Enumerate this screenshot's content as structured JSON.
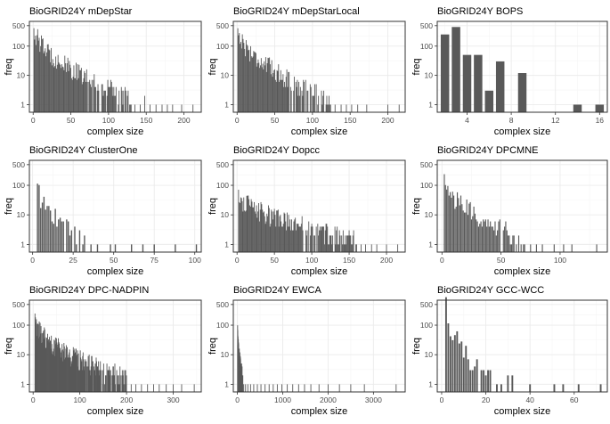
{
  "figure": {
    "style": {
      "bar_color": "#595959",
      "panel_border": "#333333",
      "grid_major": "#ebebeb",
      "grid_minor": "#f5f5f5",
      "tick_text": "#4d4d4d"
    },
    "panels": [
      {
        "title": "BioGRID24Y mDepStar"
      },
      {
        "title": "BioGRID24Y mDepStarLocal"
      },
      {
        "title": "BioGRID24Y BOPS"
      },
      {
        "title": "BioGRID24Y ClusterOne"
      },
      {
        "title": "BioGRID24Y Dopcc"
      },
      {
        "title": "BioGRID24Y DPCMNE"
      },
      {
        "title": "BioGRID24Y DPC-NADPIN"
      },
      {
        "title": "BioGRID24Y EWCA"
      },
      {
        "title": "BioGRID24Y GCC-WCC"
      }
    ]
  },
  "chart_data": [
    {
      "type": "bar",
      "title": "BioGRID24Y mDepStar",
      "xlabel": "complex size",
      "ylabel": "freq",
      "yscale": "log10",
      "xlim": [
        -5,
        223
      ],
      "ylim": [
        0.55,
        700
      ],
      "xticks": [
        0,
        50,
        100,
        150,
        200
      ],
      "yticks": [
        1,
        10,
        100,
        500
      ],
      "bar_width": 1,
      "decay": {
        "start": 1,
        "end": 130,
        "y_start": 450,
        "y_end": 1.5,
        "tail": [
          [
            135,
            1
          ],
          [
            142,
            1
          ],
          [
            148,
            2
          ],
          [
            155,
            1
          ],
          [
            163,
            1
          ],
          [
            171,
            1
          ],
          [
            178,
            1
          ],
          [
            185,
            1
          ],
          [
            197,
            1
          ],
          [
            212,
            1
          ]
        ]
      }
    },
    {
      "type": "bar",
      "title": "BioGRID24Y mDepStarLocal",
      "xlabel": "complex size",
      "ylabel": "freq",
      "yscale": "log10",
      "xlim": [
        -5,
        223
      ],
      "ylim": [
        0.55,
        700
      ],
      "xticks": [
        0,
        50,
        100,
        150,
        200
      ],
      "yticks": [
        1,
        10,
        100,
        500
      ],
      "bar_width": 1,
      "decay": {
        "start": 1,
        "end": 125,
        "y_start": 400,
        "y_end": 1.5,
        "tail": [
          [
            130,
            1
          ],
          [
            138,
            1
          ],
          [
            145,
            1
          ],
          [
            152,
            1
          ],
          [
            160,
            1
          ],
          [
            172,
            1
          ],
          [
            200,
            1
          ],
          [
            215,
            1
          ]
        ]
      }
    },
    {
      "type": "bar",
      "title": "BioGRID24Y BOPS",
      "xlabel": "complex size",
      "ylabel": "freq",
      "yscale": "log10",
      "xlim": [
        1.3,
        16.7
      ],
      "ylim": [
        0.55,
        700
      ],
      "xticks": [
        4,
        8,
        12,
        16
      ],
      "yticks": [
        1,
        10,
        100,
        500
      ],
      "bar_width": 0.9,
      "x": [
        2,
        3,
        4,
        5,
        6,
        7,
        9,
        14,
        16
      ],
      "values": [
        250,
        450,
        50,
        50,
        3,
        30,
        12,
        1,
        1
      ]
    },
    {
      "type": "bar",
      "title": "BioGRID24Y ClusterOne",
      "xlabel": "complex size",
      "ylabel": "freq",
      "yscale": "log10",
      "xlim": [
        -2,
        104
      ],
      "ylim": [
        0.55,
        700
      ],
      "xticks": [
        0,
        25,
        50,
        75,
        100
      ],
      "yticks": [
        1,
        10,
        100,
        500
      ],
      "bar_width": 0.9,
      "decay": {
        "start": 3,
        "end": 32,
        "y_start": 90,
        "y_end": 1.5,
        "tail": [
          [
            36,
            1
          ],
          [
            40,
            1
          ],
          [
            48,
            1
          ],
          [
            51,
            1
          ],
          [
            61,
            1
          ],
          [
            68,
            1
          ],
          [
            75,
            1
          ],
          [
            88,
            1
          ],
          [
            101,
            1
          ]
        ]
      }
    },
    {
      "type": "bar",
      "title": "BioGRID24Y Dopcc",
      "xlabel": "complex size",
      "ylabel": "freq",
      "yscale": "log10",
      "xlim": [
        -5,
        225
      ],
      "ylim": [
        0.55,
        700
      ],
      "xticks": [
        0,
        50,
        100,
        150,
        200
      ],
      "yticks": [
        1,
        10,
        100,
        500
      ],
      "bar_width": 1,
      "decay": {
        "start": 2,
        "end": 160,
        "y_start": 50,
        "y_end": 1.5,
        "tail": [
          [
            166,
            1
          ],
          [
            172,
            1
          ],
          [
            180,
            1
          ],
          [
            187,
            1
          ],
          [
            200,
            1
          ],
          [
            215,
            1
          ]
        ]
      }
    },
    {
      "type": "bar",
      "title": "BioGRID24Y DPCMNE",
      "xlabel": "complex size",
      "ylabel": "freq",
      "yscale": "log10",
      "xlim": [
        -4,
        140
      ],
      "ylim": [
        0.55,
        700
      ],
      "xticks": [
        0,
        50,
        100
      ],
      "yticks": [
        1,
        10,
        100,
        500
      ],
      "bar_width": 1,
      "decay": {
        "start": 2,
        "end": 70,
        "y_start": 150,
        "y_end": 1.5,
        "tail": [
          [
            75,
            1
          ],
          [
            80,
            1
          ],
          [
            85,
            1
          ],
          [
            95,
            1
          ],
          [
            103,
            1
          ],
          [
            110,
            1
          ],
          [
            131,
            1
          ]
        ]
      }
    },
    {
      "type": "bar",
      "title": "BioGRID24Y DPC-NADPIN",
      "xlabel": "complex size",
      "ylabel": "freq",
      "yscale": "log10",
      "xlim": [
        -8,
        360
      ],
      "ylim": [
        0.55,
        700
      ],
      "xticks": [
        0,
        100,
        200,
        300
      ],
      "yticks": [
        1,
        10,
        100,
        500
      ],
      "bar_width": 1,
      "decay": {
        "start": 4,
        "end": 200,
        "y_start": 140,
        "y_end": 1.5,
        "tail": [
          [
            210,
            1
          ],
          [
            220,
            1
          ],
          [
            232,
            1
          ],
          [
            245,
            1
          ],
          [
            258,
            1
          ],
          [
            270,
            1
          ],
          [
            285,
            1
          ],
          [
            300,
            1
          ],
          [
            318,
            1
          ],
          [
            345,
            1
          ]
        ]
      }
    },
    {
      "type": "bar",
      "title": "BioGRID24Y EWCA",
      "xlabel": "complex size",
      "ylabel": "freq",
      "yscale": "log10",
      "xlim": [
        -90,
        3700
      ],
      "ylim": [
        0.55,
        700
      ],
      "xticks": [
        0,
        1000,
        2000,
        3000
      ],
      "yticks": [
        1,
        10,
        100,
        500
      ],
      "bar_width": 6,
      "decay": {
        "start": 5,
        "end": 120,
        "y_start": 50,
        "y_end": 1.5,
        "tail": [
          [
            140,
            1
          ],
          [
            180,
            1
          ],
          [
            230,
            1
          ],
          [
            290,
            1
          ],
          [
            360,
            1
          ],
          [
            440,
            1
          ],
          [
            520,
            1
          ],
          [
            610,
            1
          ],
          [
            700,
            1
          ],
          [
            790,
            1
          ],
          [
            880,
            1
          ],
          [
            980,
            1
          ],
          [
            1100,
            1
          ],
          [
            1220,
            1
          ],
          [
            1350,
            1
          ],
          [
            1480,
            1
          ],
          [
            1620,
            1
          ],
          [
            1800,
            1
          ],
          [
            2000,
            1
          ],
          [
            2250,
            1
          ],
          [
            2500,
            1
          ],
          [
            2800,
            1
          ],
          [
            3500,
            1
          ]
        ]
      }
    },
    {
      "type": "bar",
      "title": "BioGRID24Y GCC-WCC",
      "xlabel": "complex size",
      "ylabel": "freq",
      "yscale": "log10",
      "xlim": [
        -2,
        75
      ],
      "ylim": [
        0.55,
        700
      ],
      "xticks": [
        0,
        20,
        40,
        60
      ],
      "yticks": [
        1,
        10,
        100,
        500
      ],
      "bar_width": 0.9,
      "decay": {
        "start": 2,
        "end": 22,
        "y_start": 400,
        "y_end": 1.5,
        "tail": [
          [
            25,
            1
          ],
          [
            27,
            1
          ],
          [
            30,
            2
          ],
          [
            32,
            2
          ],
          [
            40,
            1
          ],
          [
            51,
            1
          ],
          [
            55,
            1
          ],
          [
            62,
            1
          ],
          [
            72,
            1
          ]
        ]
      }
    }
  ]
}
